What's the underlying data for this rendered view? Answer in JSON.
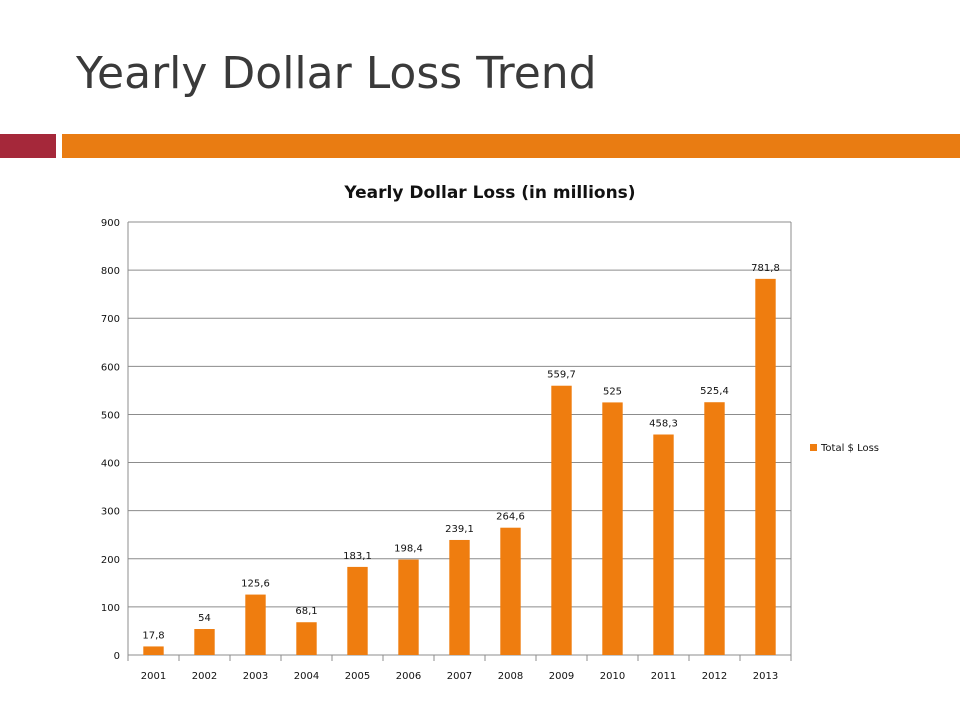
{
  "slide": {
    "title": "Yearly Dollar Loss Trend"
  },
  "colors": {
    "accent_left": "#a5283a",
    "accent_right": "#e97c12",
    "bar": "#ef7d0f",
    "gridline": "#8c8c8c",
    "text": "#3a3a3a"
  },
  "chart_data": {
    "type": "bar",
    "title": "Yearly Dollar Loss (in millions)",
    "xlabel": "",
    "ylabel": "",
    "categories": [
      "2001",
      "2002",
      "2003",
      "2004",
      "2005",
      "2006",
      "2007",
      "2008",
      "2009",
      "2010",
      "2011",
      "2012",
      "2013"
    ],
    "series": [
      {
        "name": "Total $ Loss",
        "values": [
          17.8,
          54,
          125.6,
          68.1,
          183.1,
          198.4,
          239.1,
          264.6,
          559.7,
          525,
          458.3,
          525.4,
          781.8
        ],
        "labels": [
          "17,8",
          "54",
          "125,6",
          "68,1",
          "183,1",
          "198,4",
          "239,1",
          "264,6",
          "559,7",
          "525",
          "458,3",
          "525,4",
          "781,8"
        ]
      }
    ],
    "ylim": [
      0,
      900
    ],
    "yticks": [
      0,
      100,
      200,
      300,
      400,
      500,
      600,
      700,
      800,
      900
    ],
    "grid": true,
    "legend_position": "right"
  }
}
